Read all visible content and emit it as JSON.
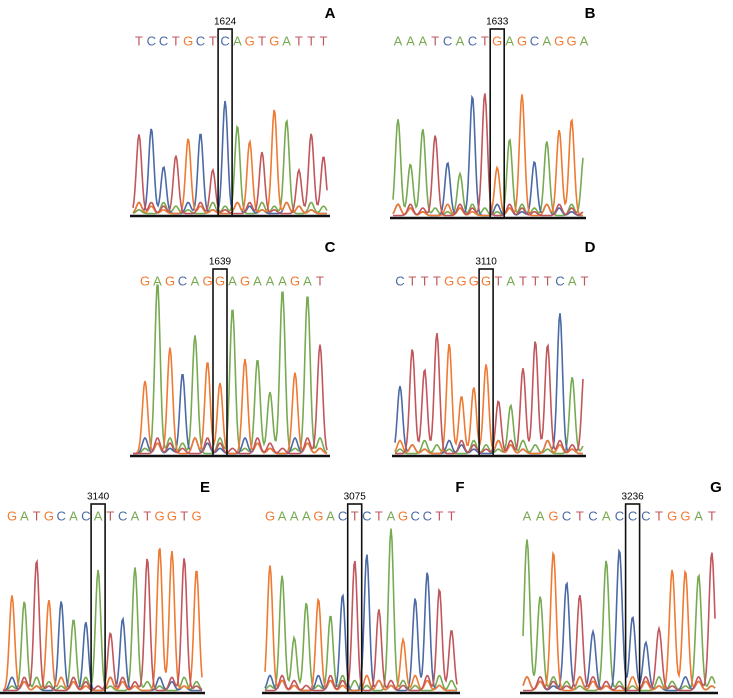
{
  "panels": [
    {
      "label": "A",
      "position": "1624",
      "sequence": [
        "T",
        "C",
        "C",
        "T",
        "G",
        "C",
        "T",
        "C",
        "A",
        "G",
        "T",
        "G",
        "A",
        "T",
        "T",
        "T"
      ]
    },
    {
      "label": "B",
      "position": "1633",
      "sequence": [
        "A",
        "A",
        "A",
        "T",
        "C",
        "A",
        "C",
        "T",
        "G",
        "A",
        "G",
        "C",
        "A",
        "G",
        "G",
        "A"
      ]
    },
    {
      "label": "C",
      "position": "1639",
      "sequence": [
        "G",
        "A",
        "G",
        "C",
        "A",
        "G",
        "G",
        "A",
        "G",
        "A",
        "A",
        "A",
        "G",
        "A",
        "T"
      ]
    },
    {
      "label": "D",
      "position": "3110",
      "sequence": [
        "C",
        "T",
        "T",
        "T",
        "G",
        "G",
        "G",
        "G",
        "T",
        "A",
        "T",
        "T",
        "T",
        "C",
        "A",
        "T"
      ]
    },
    {
      "label": "E",
      "position": "3140",
      "sequence": [
        "G",
        "A",
        "T",
        "G",
        "C",
        "A",
        "C",
        "A",
        "T",
        "C",
        "A",
        "T",
        "G",
        "G",
        "T",
        "G"
      ]
    },
    {
      "label": "F",
      "position": "3075",
      "sequence": [
        "G",
        "A",
        "A",
        "A",
        "G",
        "A",
        "C",
        "T",
        "C",
        "T",
        "A",
        "G",
        "C",
        "C",
        "T",
        "T"
      ]
    },
    {
      "label": "G",
      "position": "3236",
      "sequence": [
        "A",
        "A",
        "G",
        "C",
        "T",
        "C",
        "A",
        "C",
        "C",
        "C",
        "T",
        "G",
        "G",
        "A",
        "T"
      ]
    }
  ]
}
